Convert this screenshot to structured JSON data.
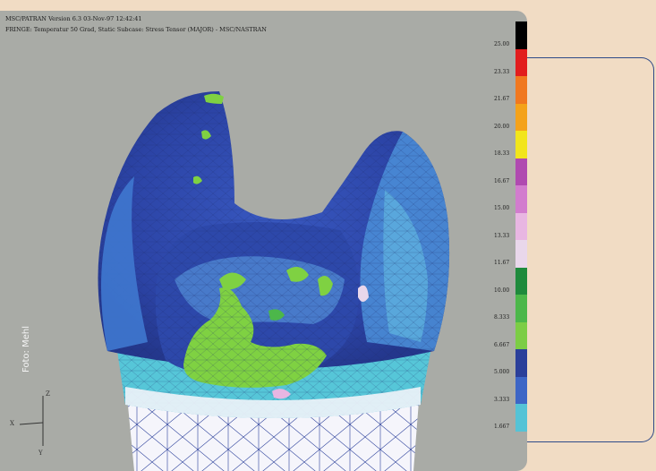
{
  "header": {
    "line1": "MSC/PATRAN Version 6.3 03-Nov-97 12:42:41",
    "line2": "FRINGE: Temperatur 50 Grad, Static Subcase: Stress Tensor (MAJOR) - MSC/NASTRAN"
  },
  "color_scale": {
    "labels": [
      "25.00",
      "23.33",
      "21.67",
      "20.00",
      "18.33",
      "16.67",
      "15.00",
      "13.33",
      "11.67",
      "10.00",
      "8.333",
      "6.667",
      "5.000",
      "3.333",
      "1.667"
    ],
    "colors": [
      "#000000",
      "#e21d1d",
      "#f07820",
      "#f4a21a",
      "#f2e51c",
      "#b04ab0",
      "#d27cce",
      "#e8b6e2",
      "#e9d7eb",
      "#1e8a3c",
      "#4cb74a",
      "#7ccd45",
      "#2a3f9a",
      "#3d66c6",
      "#55c3d6"
    ]
  },
  "axes": {
    "z": "Z",
    "x": "X",
    "y": "Y"
  },
  "credit": "Foto: Mehl"
}
